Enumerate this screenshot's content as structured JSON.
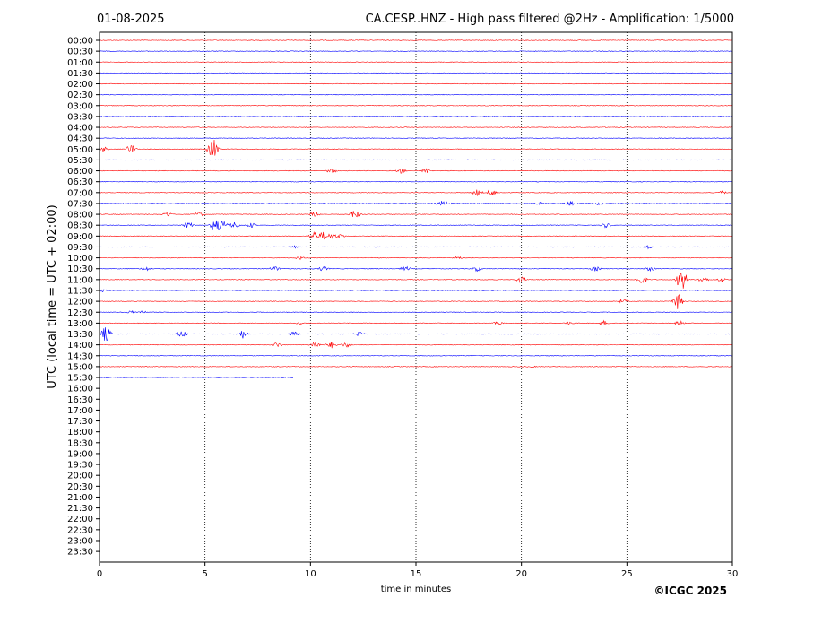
{
  "header": {
    "date": "01-08-2025",
    "title": "CA.CESP..HNZ - High pass filtered @2Hz - Amplification: 1/5000"
  },
  "footer": {
    "copyright": "©ICGC 2025"
  },
  "chart_data": {
    "type": "line",
    "xlabel": "time in minutes",
    "ylabel": "UTC (local time = UTC + 02:00)",
    "xlim": [
      0,
      30
    ],
    "x_ticks": [
      "0",
      "5",
      "10",
      "15",
      "20",
      "25",
      "30"
    ],
    "x_tick_values": [
      0,
      5,
      10,
      15,
      20,
      25,
      30
    ],
    "grid": "vertical dotted lines at x ticks",
    "colors": {
      "red": "#ff0000",
      "blue": "#0000ff"
    },
    "rows": [
      {
        "label": "00:00",
        "color": "red",
        "events": [],
        "end": 30
      },
      {
        "label": "00:30",
        "color": "blue",
        "events": [],
        "end": 30
      },
      {
        "label": "01:00",
        "color": "red",
        "events": [],
        "end": 30
      },
      {
        "label": "01:30",
        "color": "blue",
        "events": [],
        "end": 30
      },
      {
        "label": "02:00",
        "color": "red",
        "events": [],
        "end": 30
      },
      {
        "label": "02:30",
        "color": "blue",
        "events": [],
        "end": 30
      },
      {
        "label": "03:00",
        "color": "red",
        "events": [],
        "end": 30
      },
      {
        "label": "03:30",
        "color": "blue",
        "events": [],
        "end": 30
      },
      {
        "label": "04:00",
        "color": "red",
        "events": [],
        "end": 30
      },
      {
        "label": "04:30",
        "color": "blue",
        "events": [],
        "end": 30
      },
      {
        "label": "05:00",
        "color": "red",
        "events": [
          [
            0.2,
            3
          ],
          [
            1.5,
            6
          ],
          [
            5.3,
            6
          ],
          [
            5.4,
            12
          ]
        ],
        "end": 30
      },
      {
        "label": "05:30",
        "color": "blue",
        "events": [],
        "end": 30
      },
      {
        "label": "06:00",
        "color": "red",
        "events": [
          [
            11.0,
            3
          ],
          [
            14.3,
            3
          ],
          [
            15.5,
            3
          ]
        ],
        "end": 30
      },
      {
        "label": "06:30",
        "color": "blue",
        "events": [],
        "end": 30
      },
      {
        "label": "07:00",
        "color": "red",
        "events": [
          [
            17.9,
            4
          ],
          [
            18.6,
            4
          ],
          [
            29.5,
            2
          ]
        ],
        "end": 30
      },
      {
        "label": "07:30",
        "color": "blue",
        "events": [
          [
            16.2,
            3
          ],
          [
            16.5,
            2
          ],
          [
            20.9,
            2
          ],
          [
            22.3,
            3
          ],
          [
            23.7,
            2
          ]
        ],
        "end": 30
      },
      {
        "label": "08:00",
        "color": "red",
        "events": [
          [
            3.2,
            3
          ],
          [
            4.7,
            3
          ],
          [
            10.2,
            3
          ],
          [
            12.1,
            6
          ]
        ],
        "end": 30
      },
      {
        "label": "08:30",
        "color": "blue",
        "events": [
          [
            4.2,
            4
          ],
          [
            5.5,
            8
          ],
          [
            5.9,
            6
          ],
          [
            6.4,
            4
          ],
          [
            7.2,
            3
          ],
          [
            24.0,
            3
          ]
        ],
        "end": 30
      },
      {
        "label": "09:00",
        "color": "red",
        "events": [
          [
            10.2,
            6
          ],
          [
            10.6,
            5
          ],
          [
            11.0,
            4
          ],
          [
            11.4,
            3
          ]
        ],
        "end": 30
      },
      {
        "label": "09:30",
        "color": "blue",
        "events": [
          [
            9.2,
            2
          ],
          [
            26.0,
            2
          ]
        ],
        "end": 30
      },
      {
        "label": "10:00",
        "color": "red",
        "events": [
          [
            9.5,
            2
          ],
          [
            17.0,
            2
          ]
        ],
        "end": 30
      },
      {
        "label": "10:30",
        "color": "blue",
        "events": [
          [
            2.2,
            3
          ],
          [
            8.3,
            3
          ],
          [
            10.6,
            3
          ],
          [
            14.5,
            3
          ],
          [
            17.9,
            3
          ],
          [
            23.5,
            3
          ],
          [
            26.1,
            3
          ]
        ],
        "end": 30
      },
      {
        "label": "11:00",
        "color": "red",
        "events": [
          [
            20.0,
            4
          ],
          [
            25.7,
            6
          ],
          [
            27.6,
            14
          ],
          [
            28.6,
            4
          ],
          [
            29.5,
            3
          ]
        ],
        "end": 30
      },
      {
        "label": "11:30",
        "color": "blue",
        "events": [
          [
            0.1,
            2
          ]
        ],
        "end": 30
      },
      {
        "label": "12:00",
        "color": "red",
        "events": [
          [
            24.8,
            3
          ],
          [
            27.4,
            9
          ]
        ],
        "end": 30
      },
      {
        "label": "12:30",
        "color": "blue",
        "events": [
          [
            1.5,
            2
          ],
          [
            2.0,
            2
          ]
        ],
        "end": 30
      },
      {
        "label": "13:00",
        "color": "red",
        "events": [
          [
            9.5,
            2
          ],
          [
            18.9,
            2
          ],
          [
            22.3,
            2
          ],
          [
            23.9,
            3
          ],
          [
            27.5,
            3
          ]
        ],
        "end": 30
      },
      {
        "label": "13:30",
        "color": "blue",
        "events": [
          [
            0.3,
            9
          ],
          [
            3.9,
            4
          ],
          [
            6.8,
            5
          ],
          [
            9.2,
            3
          ],
          [
            12.3,
            3
          ]
        ],
        "end": 30
      },
      {
        "label": "14:00",
        "color": "red",
        "events": [
          [
            8.4,
            3
          ],
          [
            10.2,
            4
          ],
          [
            11.0,
            4
          ],
          [
            11.7,
            3
          ]
        ],
        "end": 30
      },
      {
        "label": "14:30",
        "color": "blue",
        "events": [],
        "end": 30
      },
      {
        "label": "15:00",
        "color": "red",
        "events": [
          [
            20.5,
            1
          ]
        ],
        "end": 30
      },
      {
        "label": "15:30",
        "color": "blue",
        "events": [],
        "end": 9.2
      },
      {
        "label": "16:00",
        "color": "red",
        "events": [],
        "end": 0
      },
      {
        "label": "16:30",
        "color": "blue",
        "events": [],
        "end": 0
      },
      {
        "label": "17:00",
        "color": "red",
        "events": [],
        "end": 0
      },
      {
        "label": "17:30",
        "color": "blue",
        "events": [],
        "end": 0
      },
      {
        "label": "18:00",
        "color": "red",
        "events": [],
        "end": 0
      },
      {
        "label": "18:30",
        "color": "blue",
        "events": [],
        "end": 0
      },
      {
        "label": "19:00",
        "color": "red",
        "events": [],
        "end": 0
      },
      {
        "label": "19:30",
        "color": "blue",
        "events": [],
        "end": 0
      },
      {
        "label": "20:00",
        "color": "red",
        "events": [],
        "end": 0
      },
      {
        "label": "20:30",
        "color": "blue",
        "events": [],
        "end": 0
      },
      {
        "label": "21:00",
        "color": "red",
        "events": [],
        "end": 0
      },
      {
        "label": "21:30",
        "color": "blue",
        "events": [],
        "end": 0
      },
      {
        "label": "22:00",
        "color": "red",
        "events": [],
        "end": 0
      },
      {
        "label": "22:30",
        "color": "blue",
        "events": [],
        "end": 0
      },
      {
        "label": "23:00",
        "color": "red",
        "events": [],
        "end": 0
      },
      {
        "label": "23:30",
        "color": "blue",
        "events": [],
        "end": 0
      }
    ]
  }
}
